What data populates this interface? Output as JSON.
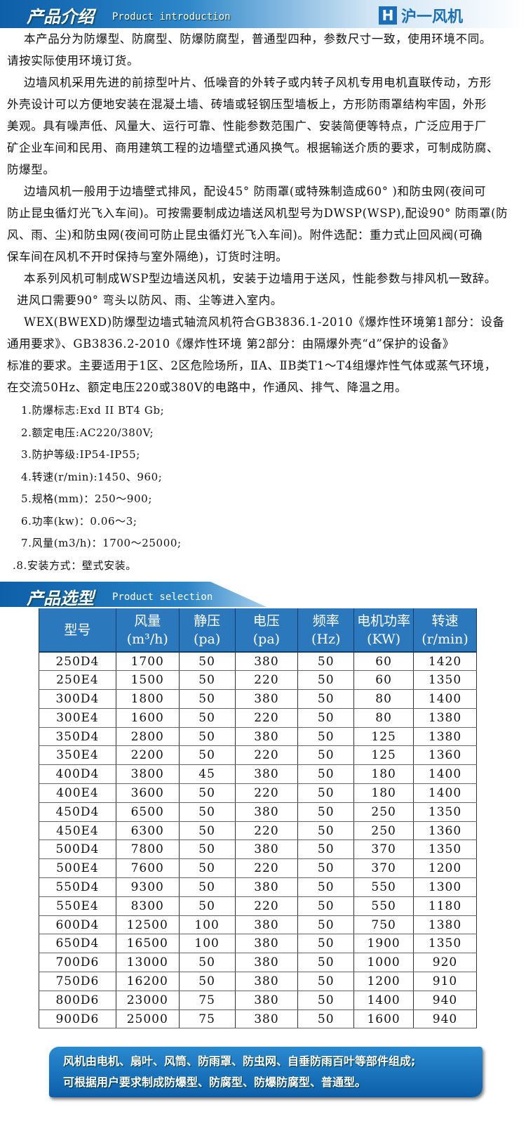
{
  "header": {
    "title": "产品介绍",
    "subtitle": "Product introduction",
    "logo_mark": "H",
    "logo_text": "沪一风机"
  },
  "intro_lines": [
    "本产品分为防爆型、防腐型、防爆防腐型，普通型四种，参数尺寸一致，使用环境不同。",
    "请按实际使用环境订货。",
    "边墙风机采用先进的前掠型叶片、低噪音的外转子或内转子风机专用电机直联传动，方形",
    "外壳设计可以方便地安装在混凝土墙、砖墙或轻钢压型墙板上，方形防雨罩结构牢固，外形",
    "美观。具有噪声低、风量大、运行可靠、性能参数范围广、安装简便等特点，广泛应用于厂",
    "矿企业车间和民用、商用建筑工程的边墙壁式通风换气。根据输送介质的要求，可制成防腐、",
    "防爆型。",
    "边墙风机一般用于边墙壁式排风，配设45° 防雨罩(或特殊制造成60°  )和防虫网(夜间可",
    "防止昆虫循灯光飞入车间)。可按需要制成边墙送风机型号为DWSP(WSP),配设90° 防雨罩(防",
    "风、雨、尘)和防虫网(夜间可防止昆虫循灯光飞入车间)。附件选配：重力式止回风阀(可确",
    "保车间在风机不开时保持与室外隔绝)，订货时注明。",
    "本系列风机可制成WSP型边墙送风机，安装于边墙用于送风，性能参数与排风机一致辞。",
    "进风口需要90° 弯头以防风、雨、尘等进入室内。",
    "WEX(BWEXD)防爆型边墙式轴流风机符合GB3836.1-2010《爆炸性环境第1部分：设备",
    "通用要求》、GB3836.2-2010《爆炸性环境  第2部分：由隔爆外壳“d”保护的设备》",
    "标准的要求。主要适用于1区、2区危险场所，ⅡA、ⅡB类T1～T4组爆炸性气体或蒸气环境，",
    "在交流50Hz、额定电压220或380V的电路中，作通风、排气、降温之用。"
  ],
  "spec_list": [
    "1.防爆标志:Exd II BT4 Gb;",
    "2.额定电压:AC220/380V;",
    "3.防护等级:IP54-IP55;",
    "4.转速(r/min):1450、960;",
    "5.规格(mm)：250～900;",
    "6.功率(kw)：0.06～3;",
    "7.风量(m3/h)：1700～25000;",
    ".8.安装方式：壁式安装。"
  ],
  "selection": {
    "title": "产品选型",
    "subtitle": "Product selection",
    "headers": [
      [
        "型号",
        ""
      ],
      [
        "风量",
        "(m³/h)"
      ],
      [
        "静压",
        "(pa)"
      ],
      [
        "电压",
        "(pa)"
      ],
      [
        "频率",
        "(Hz)"
      ],
      [
        "电机功率",
        "(KW)"
      ],
      [
        "转速",
        "(r/min)"
      ]
    ],
    "rows": [
      [
        "250D4",
        "1700",
        "50",
        "380",
        "50",
        "60",
        "1420"
      ],
      [
        "250E4",
        "1500",
        "50",
        "220",
        "50",
        "60",
        "1350"
      ],
      [
        "300D4",
        "1800",
        "50",
        "380",
        "50",
        "80",
        "1400"
      ],
      [
        "300E4",
        "1600",
        "50",
        "220",
        "50",
        "80",
        "1380"
      ],
      [
        "350D4",
        "2800",
        "50",
        "380",
        "50",
        "125",
        "1380"
      ],
      [
        "350E4",
        "2200",
        "50",
        "220",
        "50",
        "125",
        "1360"
      ],
      [
        "400D4",
        "3800",
        "45",
        "380",
        "50",
        "180",
        "1400"
      ],
      [
        "400E4",
        "3600",
        "50",
        "220",
        "50",
        "180",
        "1400"
      ],
      [
        "450D4",
        "6500",
        "50",
        "380",
        "50",
        "250",
        "1350"
      ],
      [
        "450E4",
        "6300",
        "50",
        "220",
        "50",
        "250",
        "1360"
      ],
      [
        "500D4",
        "7800",
        "50",
        "380",
        "50",
        "370",
        "1350"
      ],
      [
        "500E4",
        "7600",
        "50",
        "220",
        "50",
        "370",
        "1200"
      ],
      [
        "550D4",
        "9300",
        "50",
        "380",
        "50",
        "550",
        "1300"
      ],
      [
        "550E4",
        "8300",
        "50",
        "220",
        "50",
        "550",
        "1180"
      ],
      [
        "600D4",
        "12500",
        "100",
        "380",
        "50",
        "750",
        "1380"
      ],
      [
        "650D4",
        "16500",
        "100",
        "380",
        "50",
        "1900",
        "1350"
      ],
      [
        "700D6",
        "13000",
        "50",
        "380",
        "50",
        "1000",
        "920"
      ],
      [
        "750D6",
        "16200",
        "50",
        "380",
        "50",
        "1200",
        "910"
      ],
      [
        "800D6",
        "23000",
        "75",
        "380",
        "50",
        "1400",
        "940"
      ],
      [
        "900D6",
        "25000",
        "75",
        "380",
        "50",
        "1600",
        "940"
      ]
    ]
  },
  "footer_lines": [
    "风机由电机、扇叶、风筒、防雨罩、防虫网、自垂防雨百叶等部件组成;",
    "可根据用户要求制成防爆型、防腐型、防爆防腐型、普通型。"
  ],
  "colors": {
    "brand": "#1a6fb8",
    "header_blue": "#0d5fa8",
    "table_header": "#2b78bd"
  }
}
